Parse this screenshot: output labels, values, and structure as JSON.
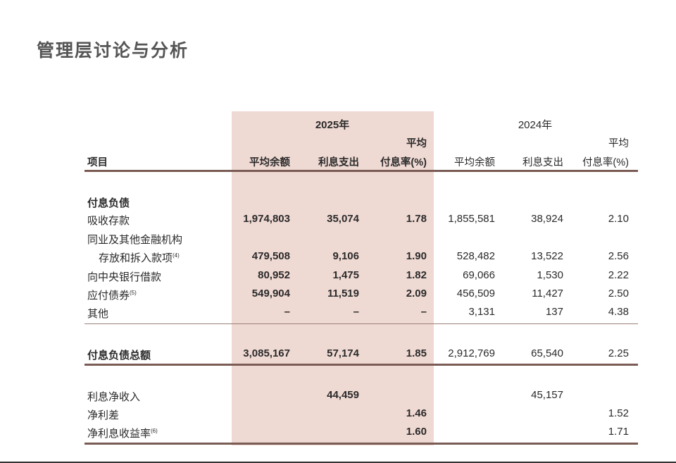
{
  "page_title": "管理层讨论与分析",
  "years": {
    "y2025": "2025年",
    "y2024": "2024年"
  },
  "headers": {
    "item": "项目",
    "avg_balance": "平均余额",
    "interest_expense": "利息支出",
    "avg_rate_line1": "平均",
    "avg_rate_line2": "付息率(%)"
  },
  "rows": [
    {
      "label": "付息负债",
      "type": "section"
    },
    {
      "label": "吸收存款",
      "v": [
        "1,974,803",
        "35,074",
        "1.78",
        "1,855,581",
        "38,924",
        "2.10"
      ]
    },
    {
      "label": "同业及其他金融机构",
      "type": "label-only"
    },
    {
      "label": "存放和拆入款项",
      "note": "(4)",
      "indent": true,
      "v": [
        "479,508",
        "9,106",
        "1.90",
        "528,482",
        "13,522",
        "2.56"
      ]
    },
    {
      "label": "向中央银行借款",
      "v": [
        "80,952",
        "1,475",
        "1.82",
        "69,066",
        "1,530",
        "2.22"
      ]
    },
    {
      "label": "应付债券",
      "note": "(5)",
      "v": [
        "549,904",
        "11,519",
        "2.09",
        "456,509",
        "11,427",
        "2.50"
      ]
    },
    {
      "label": "其他",
      "v": [
        "–",
        "–",
        "–",
        "3,131",
        "137",
        "4.38"
      ]
    }
  ],
  "total_row": {
    "label": "付息负债总额",
    "v": [
      "3,085,167",
      "57,174",
      "1.85",
      "2,912,769",
      "65,540",
      "2.25"
    ]
  },
  "summary_rows": [
    {
      "label": "利息净收入",
      "v": [
        "",
        "44,459",
        "",
        "",
        "45,157",
        ""
      ]
    },
    {
      "label": "净利差",
      "v": [
        "",
        "",
        "1.46",
        "",
        "",
        "1.52"
      ]
    },
    {
      "label": "净利息收益率",
      "note": "(6)",
      "v": [
        "",
        "",
        "1.60",
        "",
        "",
        "1.71"
      ]
    }
  ]
}
